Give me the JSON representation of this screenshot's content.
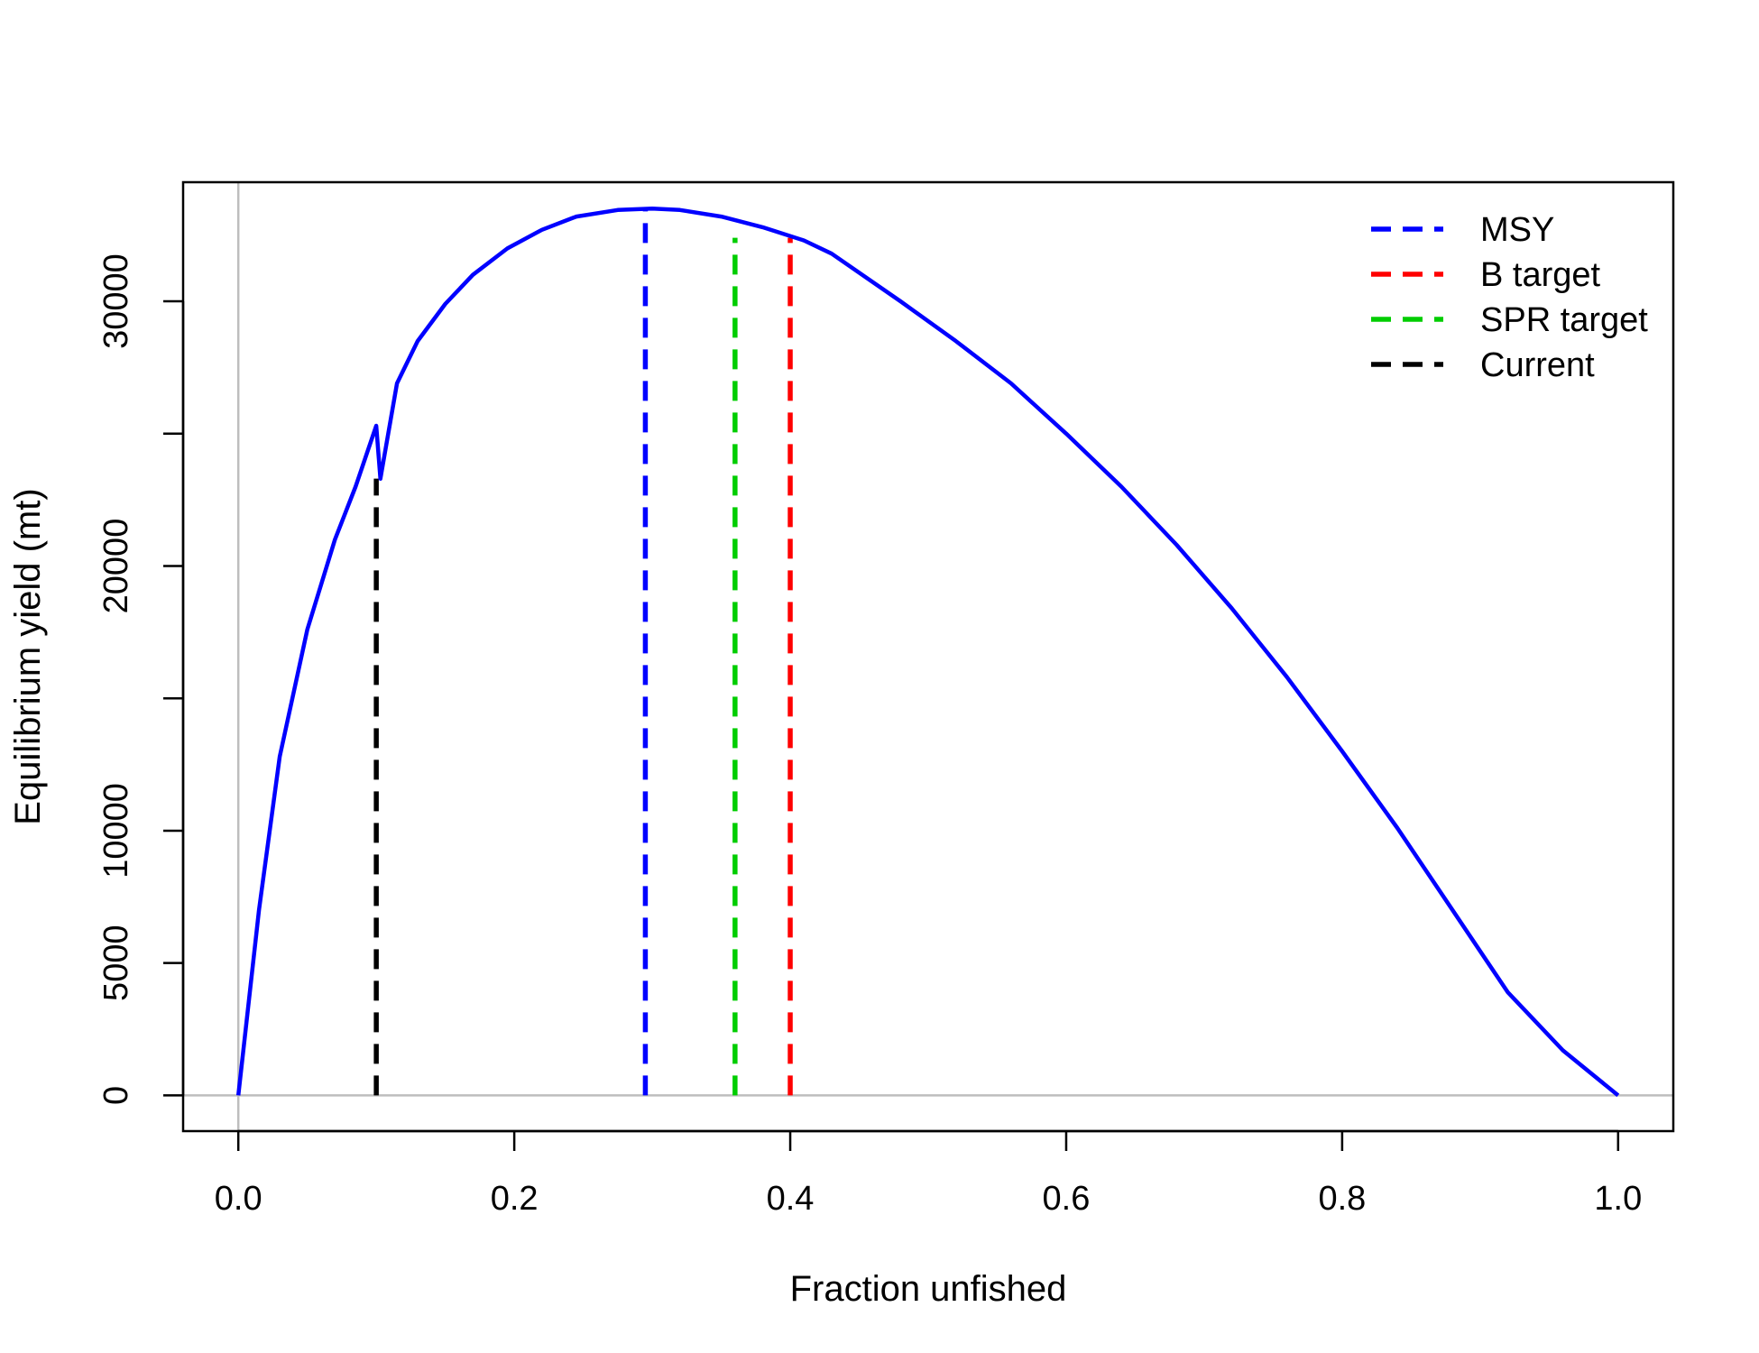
{
  "chart_data": {
    "type": "line",
    "title": "",
    "xlabel": "Fraction unfished",
    "ylabel": "Equilibrium yield (mt)",
    "xlim": [
      -0.04,
      1.04
    ],
    "ylim": [
      -1350,
      34500
    ],
    "x_ticks": [
      0.0,
      0.2,
      0.4,
      0.6,
      0.8,
      1.0
    ],
    "x_tick_labels": [
      "0.0",
      "0.2",
      "0.4",
      "0.6",
      "0.8",
      "1.0"
    ],
    "y_ticks": [
      0,
      5000,
      10000,
      15000,
      20000,
      25000,
      30000
    ],
    "y_tick_labels": [
      "0",
      "5000",
      "10000",
      "",
      "20000",
      "",
      "30000"
    ],
    "grid": false,
    "reference_lines": {
      "x": 0,
      "y": 0,
      "color": "#bebebe"
    },
    "series": [
      {
        "type": "line",
        "color": "#0000ff",
        "points": [
          [
            0.0,
            0
          ],
          [
            0.015,
            7000
          ],
          [
            0.03,
            12800
          ],
          [
            0.05,
            17600
          ],
          [
            0.07,
            21000
          ],
          [
            0.085,
            23000
          ],
          [
            0.1,
            25300
          ],
          [
            0.103,
            23300
          ],
          [
            0.115,
            26900
          ],
          [
            0.13,
            28500
          ],
          [
            0.15,
            29900
          ],
          [
            0.17,
            31000
          ],
          [
            0.195,
            32000
          ],
          [
            0.22,
            32700
          ],
          [
            0.245,
            33200
          ],
          [
            0.275,
            33450
          ],
          [
            0.3,
            33500
          ],
          [
            0.32,
            33450
          ],
          [
            0.35,
            33200
          ],
          [
            0.38,
            32800
          ],
          [
            0.41,
            32300
          ],
          [
            0.43,
            31800
          ],
          [
            0.48,
            30000
          ],
          [
            0.52,
            28500
          ],
          [
            0.56,
            26900
          ],
          [
            0.6,
            25000
          ],
          [
            0.64,
            23000
          ],
          [
            0.68,
            20800
          ],
          [
            0.72,
            18400
          ],
          [
            0.76,
            15800
          ],
          [
            0.8,
            13000
          ],
          [
            0.84,
            10100
          ],
          [
            0.88,
            7000
          ],
          [
            0.92,
            3900
          ],
          [
            0.96,
            1700
          ],
          [
            1.0,
            0
          ]
        ]
      }
    ],
    "markers": [
      {
        "label": "MSY",
        "x": 0.295,
        "y_top": 33500,
        "color": "#0000ff"
      },
      {
        "label": "SPR target",
        "x": 0.36,
        "y_top": 32400,
        "color": "#00cd00"
      },
      {
        "label": "B target",
        "x": 0.4,
        "y_top": 32400,
        "color": "#ff0000"
      },
      {
        "label": "Current",
        "x": 0.1,
        "y_top": 23300,
        "color": "#000000"
      }
    ],
    "legend": {
      "position": "top-right",
      "entries": [
        {
          "label": "MSY",
          "color": "#0000ff"
        },
        {
          "label": "B target",
          "color": "#ff0000"
        },
        {
          "label": "SPR target",
          "color": "#00cd00"
        },
        {
          "label": "Current",
          "color": "#000000"
        }
      ]
    }
  }
}
